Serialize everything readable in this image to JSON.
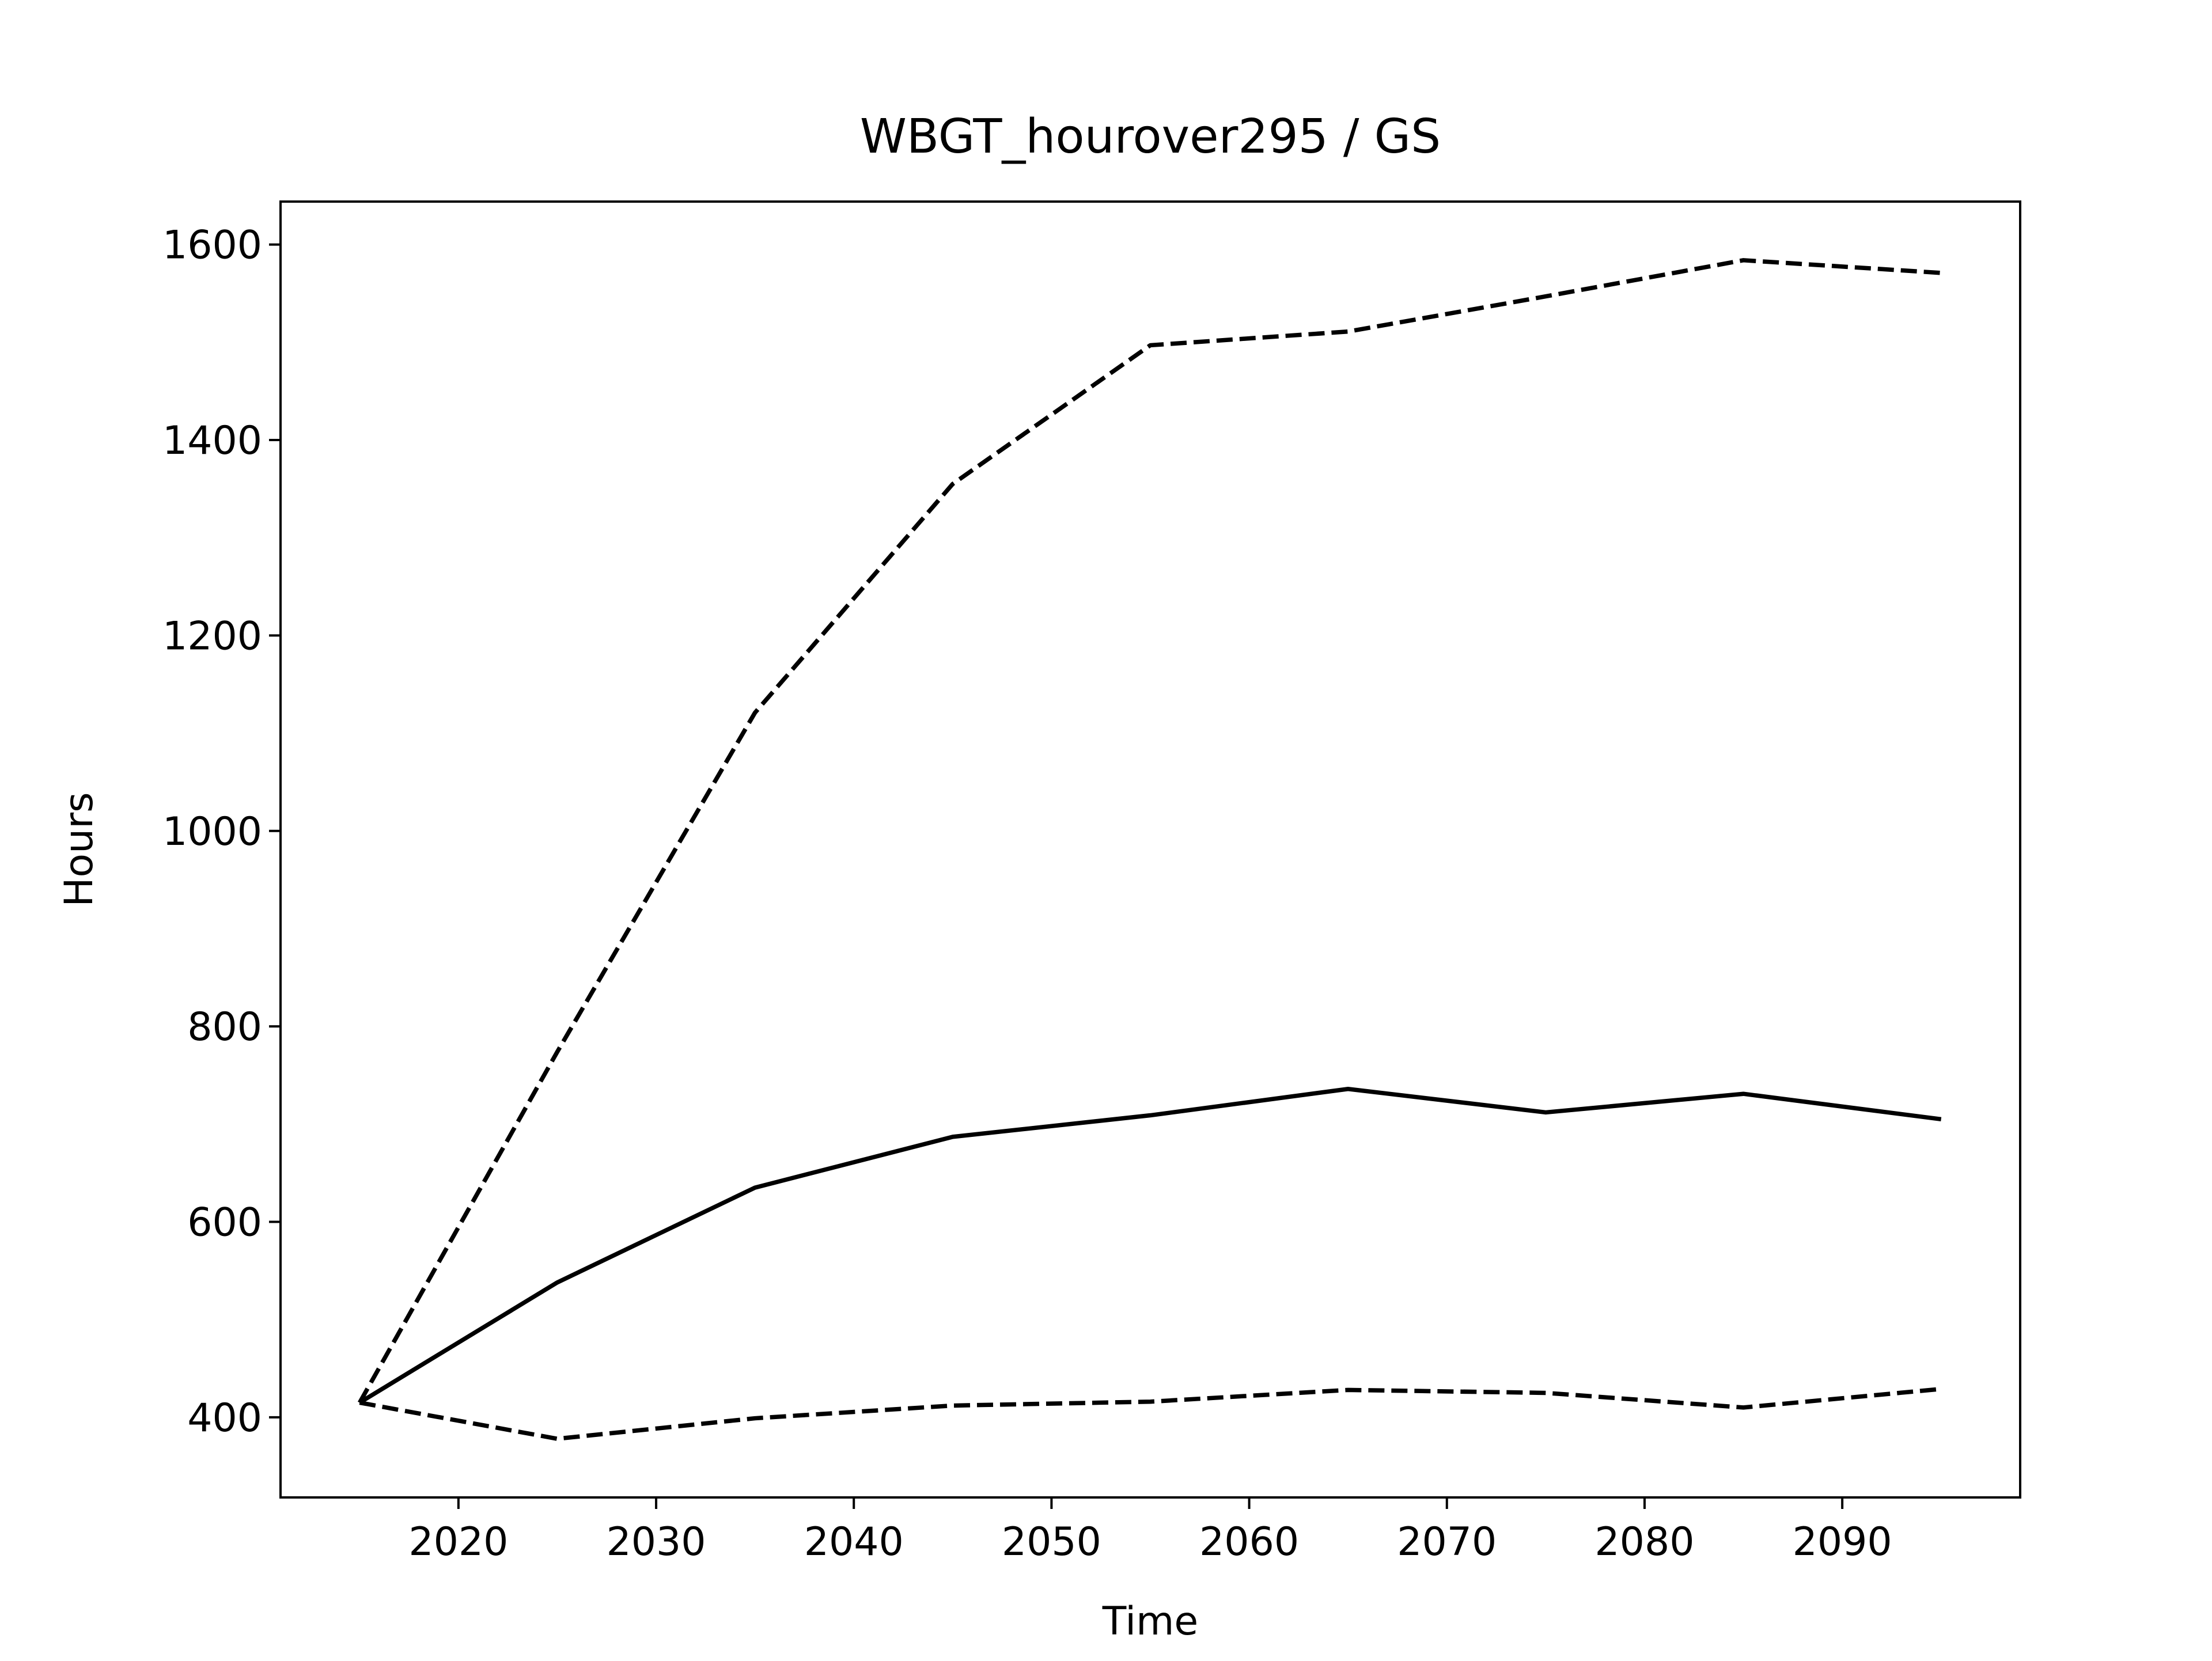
{
  "chart_data": {
    "type": "line",
    "title": "WBGT_hourover295 / GS",
    "x_label": "Time",
    "y_label": "Hours",
    "x": [
      2015,
      2025,
      2035,
      2045,
      2055,
      2065,
      2075,
      2085,
      2095
    ],
    "series": [
      {
        "color": "#000000",
        "dashed": false,
        "values": [
          415,
          538,
          635,
          687,
          709,
          736,
          712,
          731,
          705
        ]
      },
      {
        "color": "#000000",
        "dashed": true,
        "values": [
          415,
          774,
          1121,
          1355,
          1497,
          1511,
          1547,
          1584,
          1571
        ]
      },
      {
        "color": "#000000",
        "dashed": true,
        "values": [
          415,
          378,
          399,
          412,
          416,
          428,
          425,
          410,
          429
        ]
      }
    ],
    "xlim": [
      2011,
      2099
    ],
    "xticks": [
      2020,
      2030,
      2040,
      2050,
      2060,
      2070,
      2080,
      2090
    ],
    "ylim": [
      318,
      1644
    ],
    "yticks": [
      400,
      600,
      800,
      1000,
      1200,
      1400,
      1600
    ],
    "grid": false
  }
}
